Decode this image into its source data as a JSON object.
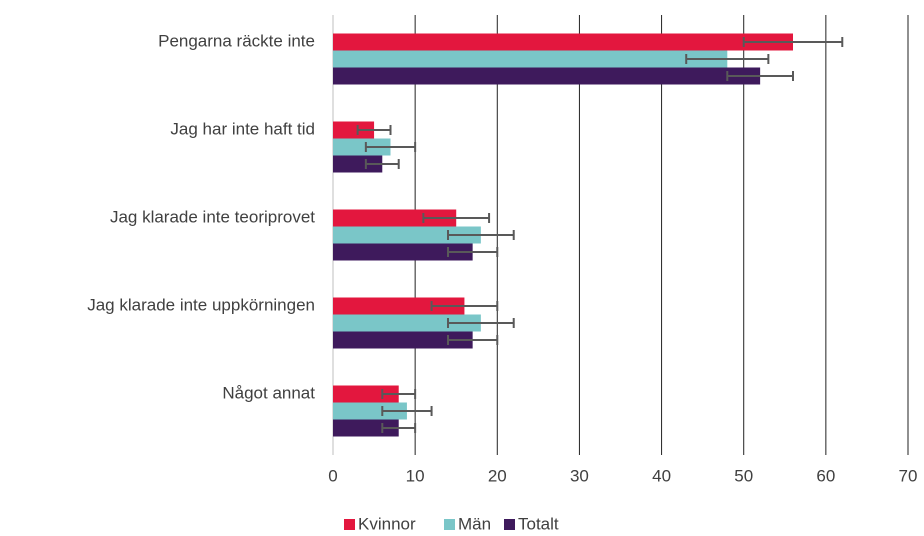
{
  "chart_data": {
    "type": "bar",
    "orientation": "horizontal",
    "categories": [
      "Pengarna räckte inte",
      "Jag har inte haft tid",
      "Jag klarade inte teoriprovet",
      "Jag klarade inte uppkörningen",
      "Något annat"
    ],
    "series": [
      {
        "name": "Kvinnor",
        "color": "#e3173e",
        "values": [
          56,
          5,
          15,
          16,
          8
        ],
        "errors": [
          6,
          2,
          4,
          4,
          2
        ]
      },
      {
        "name": "Män",
        "color": "#7ac6c8",
        "values": [
          48,
          7,
          18,
          18,
          9
        ],
        "errors": [
          5,
          3,
          4,
          4,
          3
        ]
      },
      {
        "name": "Totalt",
        "color": "#3e1a5c",
        "values": [
          52,
          6,
          17,
          17,
          8
        ],
        "errors": [
          4,
          2,
          3,
          3,
          2
        ]
      }
    ],
    "xlim": [
      0,
      70
    ],
    "xticks": [
      0,
      10,
      20,
      30,
      40,
      50,
      60,
      70
    ],
    "grid": true,
    "legend": "bottom"
  }
}
